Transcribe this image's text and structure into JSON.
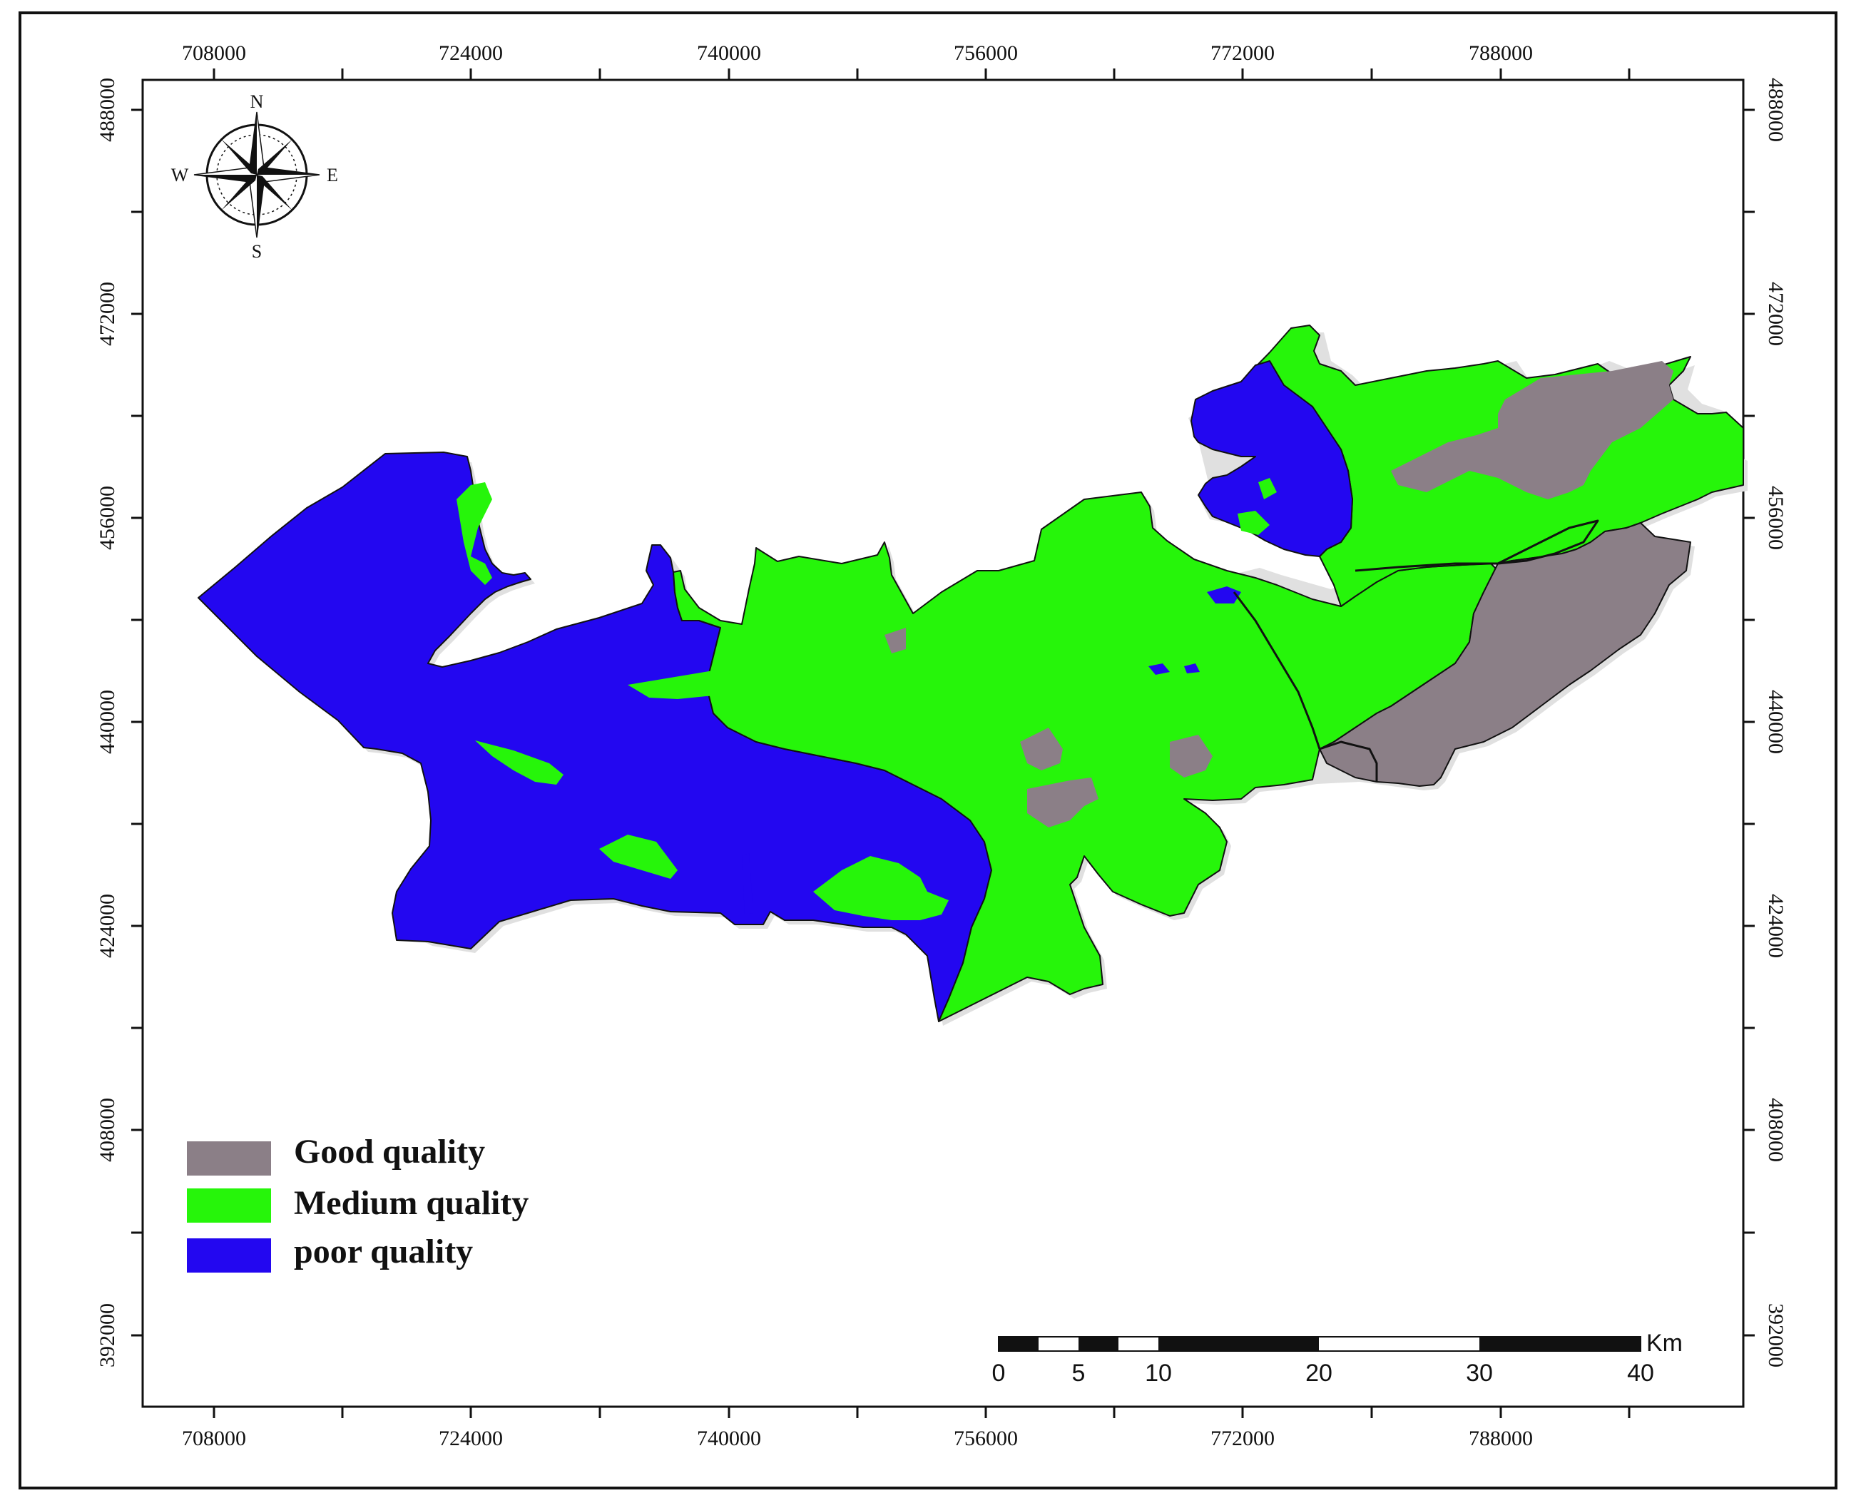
{
  "map": {
    "x_ticks": [
      "708000",
      "724000",
      "740000",
      "756000",
      "772000",
      "788000"
    ],
    "y_ticks": [
      "488000",
      "472000",
      "456000",
      "440000",
      "424000",
      "408000",
      "392000"
    ],
    "colors": {
      "good": "#8b7f87",
      "medium": "#26f50a",
      "poor": "#2307f0",
      "background": "#ffffff",
      "outline": "#111111"
    }
  },
  "compass": {
    "n": "N",
    "s": "S",
    "e": "E",
    "w": "W"
  },
  "legend": {
    "items": [
      {
        "label": "Good quality",
        "color": "#8b7f87"
      },
      {
        "label": "Medium quality",
        "color": "#26f50a"
      },
      {
        "label": "poor quality",
        "color": "#2307f0"
      }
    ]
  },
  "scale_bar": {
    "unit": "Km",
    "labels": [
      "0",
      "5",
      "10",
      "20",
      "30",
      "40"
    ]
  }
}
